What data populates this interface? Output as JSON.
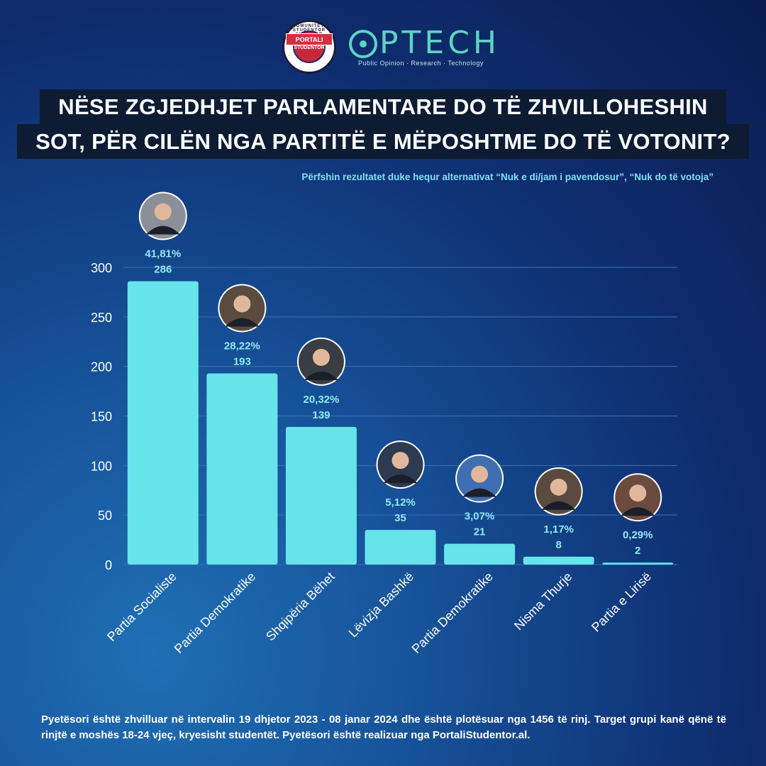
{
  "logos": {
    "portal_top": "KOMUNITETI STUDENTOR SHQIPTAR",
    "portal_band": "PORTALI",
    "portal_sub": "STUDENTOR",
    "optech_name": "PTECH",
    "optech_tagline": "Public Opinion · Research · Technology"
  },
  "title": {
    "line1": "NËSE ZGJEDHJET PARLAMENTARE DO TË ZHVILLOHESHIN",
    "line2": "SOT, PËR CILËN NGA PARTITË E MËPOSHTME DO TË VOTONIT?"
  },
  "subtitle": "Përfshin rezultatet duke hequr alternativat “Nuk e di/jam i pavendosur”, “Nuk do të votoja”",
  "footer": "Pyetësori është zhvilluar në intervalin 19 dhjetor 2023 - 08 janar 2024 dhe është plotësuar nga 1456 të rinj. Target grupi kanë qënë të rinjtë e moshës 18-24 vjeç, kryesisht studentët. Pyetësori është realizuar nga PortaliStudentor.al.",
  "colors": {
    "bar": "#67e3ea",
    "grid": "#3f6fb0",
    "label": "#8fe9f5"
  },
  "chart_data": {
    "type": "bar",
    "categories": [
      "Partia Socialiste",
      "Partia Demokratike",
      "Shqipëria Bëhet",
      "Lëvizja Bashkë",
      "Partia Demokratike",
      "Nisma Thurje",
      "Partia e Lirisë"
    ],
    "values": [
      286,
      193,
      139,
      35,
      21,
      8,
      2
    ],
    "percent_labels": [
      "41,81%",
      "28,22%",
      "20,32%",
      "5,12%",
      "3,07%",
      "1,17%",
      "0,29%"
    ],
    "value_labels": [
      "286",
      "193",
      "139",
      "35",
      "21",
      "8",
      "2"
    ],
    "yticks": [
      "0",
      "50",
      "100",
      "150",
      "200",
      "250",
      "300"
    ],
    "ylim": [
      0,
      300
    ],
    "grid": true
  }
}
